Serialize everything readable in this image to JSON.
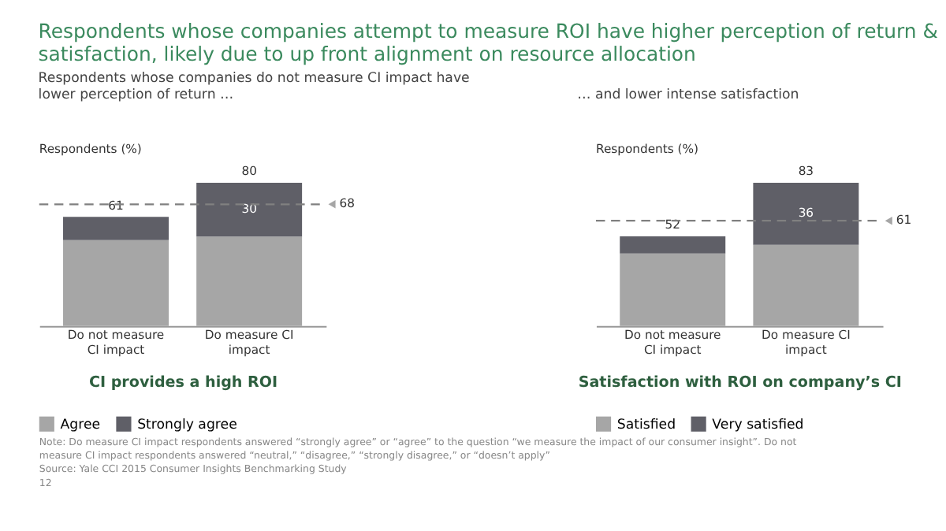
{
  "chart_data": [
    {
      "type": "bar",
      "stacked": true,
      "title": "Respondents whose companies attempt to measure ROI have higher perception of return & satisfaction, likely due to up front alignment on resource allocation",
      "subtitle": "Respondents whose companies do not measure CI impact have lower perception of return …",
      "ylabel": "Respondents (%)",
      "xlabel": "CI provides a high ROI",
      "categories": [
        "Do not measure CI impact",
        "Do measure CI impact"
      ],
      "series": [
        {
          "name": "Agree",
          "color": "#a6a6a6",
          "values": [
            48,
            50
          ],
          "value_labels": [
            null,
            null
          ]
        },
        {
          "name": "Strongly agree",
          "color": "#5f5f67",
          "values": [
            13,
            30
          ],
          "value_labels": [
            null,
            "30"
          ]
        }
      ],
      "totals": [
        "61",
        "80"
      ],
      "ref_lines": [
        {
          "axis": "y",
          "value": 68,
          "label": "68",
          "color": "#808080",
          "line_style": "dashed"
        }
      ],
      "legend": "bottom",
      "annotations": [
        "Note: Do measure CI impact respondents answered “strongly agree” or “agree” to the question “we measure the impact of our consumer insight”. Do not measure CI impact respondents answered “neutral,” “disagree,” “strongly disagree,” or “doesn’t apply”",
        "Source: Yale CCI 2015 Consumer Insights Benchmarking Study"
      ]
    },
    {
      "type": "bar",
      "stacked": true,
      "subtitle": "… and lower intense satisfaction",
      "ylabel": "Respondents (%)",
      "xlabel": "Satisfaction with ROI on company’s CI",
      "categories": [
        "Do not measure CI impact",
        "Do measure CI impact"
      ],
      "series": [
        {
          "name": "Satisfied",
          "color": "#a6a6a6",
          "values": [
            42,
            47
          ],
          "value_labels": [
            null,
            null
          ]
        },
        {
          "name": "Very satisfied",
          "color": "#5f5f67",
          "values": [
            10,
            36
          ],
          "value_labels": [
            null,
            "36"
          ]
        }
      ],
      "totals": [
        "52",
        "83"
      ],
      "ref_lines": [
        {
          "axis": "y",
          "value": 61,
          "label": "61",
          "color": "#808080",
          "line_style": "dashed"
        }
      ],
      "legend": "bottom",
      "annotations": [
        "12"
      ]
    }
  ]
}
